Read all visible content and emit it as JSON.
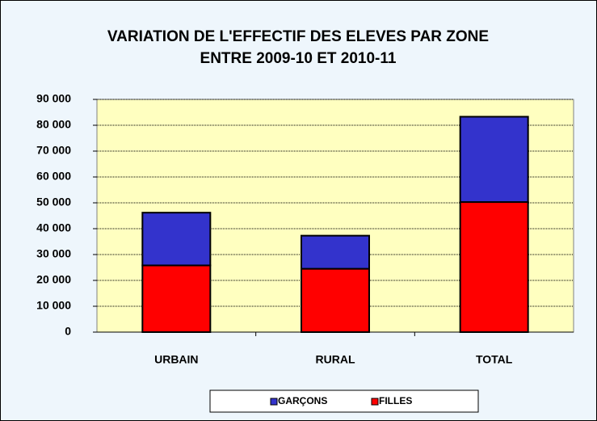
{
  "chart_data": {
    "type": "stacked_bar",
    "title": [
      "VARIATION DE L'EFFECTIF DES ELEVES PAR ZONE",
      "ENTRE 2009-10 ET 2010-11"
    ],
    "categories": [
      "URBAIN",
      "RURAL",
      "TOTAL"
    ],
    "series": [
      {
        "name": "FILLES",
        "color": "#ff0000",
        "values": [
          25800,
          24500,
          50300
        ]
      },
      {
        "name": "GARÇONS",
        "color": "#3333cc",
        "values": [
          20400,
          12800,
          33000
        ]
      }
    ],
    "ylim": [
      0,
      90000
    ],
    "yticks": [
      0,
      {
        "value": 10000,
        "label": "10 000"
      },
      {
        "value": 20000,
        "label": "20 000"
      },
      {
        "value": 30000,
        "label": "30 000"
      },
      {
        "value": 40000,
        "label": "40 000"
      },
      {
        "value": 50000,
        "label": "50 000"
      },
      {
        "value": 60000,
        "label": "60 000"
      },
      {
        "value": 70000,
        "label": "70 000"
      },
      {
        "value": 80000,
        "label": "80 000"
      },
      {
        "value": 90000,
        "label": "90 000"
      }
    ],
    "grid": true,
    "legend": "bottom"
  }
}
